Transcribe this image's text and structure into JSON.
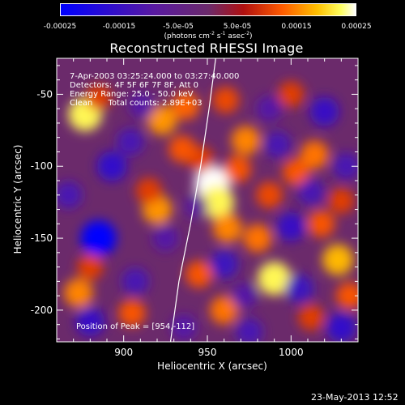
{
  "colorbar": {
    "ticks": [
      "-0.00025",
      "-0.00015",
      "-5.0e-05",
      "5.0e-05",
      "0.00015",
      "0.00025"
    ],
    "units_prefix": "(photons cm",
    "units_exp1": "-2",
    "units_mid1": " s",
    "units_exp2": "-1",
    "units_mid2": " asec",
    "units_exp3": "-2",
    "units_suffix": ")"
  },
  "chart_data": {
    "type": "heatmap",
    "title": "Reconstructed RHESSI Image",
    "xlabel": "Heliocentric X (arcsec)",
    "ylabel": "Heliocentric Y (arcsec)",
    "xlim": [
      860,
      1040
    ],
    "ylim": [
      -222,
      -25
    ],
    "xticks": [
      900,
      950,
      1000
    ],
    "yticks": [
      -50,
      -100,
      -150,
      -200
    ],
    "colorbar_range": [
      -0.00025,
      0.00025
    ],
    "colormap": "blue-purple-red-yellow-white",
    "peak": {
      "x": 954,
      "y": -112
    },
    "limb_line": [
      [
        928,
        -222
      ],
      [
        933,
        -180
      ],
      [
        940,
        -140
      ],
      [
        946,
        -100
      ],
      [
        951,
        -60
      ],
      [
        955,
        -25
      ]
    ],
    "blobs": [
      {
        "x": 953,
        "y": -112,
        "v": 0.00025
      },
      {
        "x": 956,
        "y": -125,
        "v": 0.00022
      },
      {
        "x": 946,
        "y": -95,
        "v": 0.0001
      },
      {
        "x": 962,
        "y": -143,
        "v": 0.00015
      },
      {
        "x": 980,
        "y": -150,
        "v": 0.00014
      },
      {
        "x": 990,
        "y": -178,
        "v": 0.00022
      },
      {
        "x": 935,
        "y": -88,
        "v": 0.00012
      },
      {
        "x": 923,
        "y": -68,
        "v": 0.00016
      },
      {
        "x": 937,
        "y": -58,
        "v": 0.00013
      },
      {
        "x": 877,
        "y": -64,
        "v": 0.00022
      },
      {
        "x": 885,
        "y": -52,
        "v": 0.0001
      },
      {
        "x": 920,
        "y": -130,
        "v": 0.00016
      },
      {
        "x": 915,
        "y": -117,
        "v": 0.0001
      },
      {
        "x": 973,
        "y": -82,
        "v": 0.00015
      },
      {
        "x": 968,
        "y": -102,
        "v": 0.00012
      },
      {
        "x": 1003,
        "y": -104,
        "v": 0.00012
      },
      {
        "x": 1014,
        "y": -92,
        "v": 0.00014
      },
      {
        "x": 1018,
        "y": -140,
        "v": 0.00012
      },
      {
        "x": 1030,
        "y": -124,
        "v": 0.0001
      },
      {
        "x": 1028,
        "y": -165,
        "v": 0.00018
      },
      {
        "x": 1035,
        "y": -190,
        "v": 0.00012
      },
      {
        "x": 1012,
        "y": -205,
        "v": 0.0001
      },
      {
        "x": 873,
        "y": -188,
        "v": 0.00015
      },
      {
        "x": 880,
        "y": -170,
        "v": 0.0001
      },
      {
        "x": 905,
        "y": -202,
        "v": 0.00012
      },
      {
        "x": 960,
        "y": -200,
        "v": 0.00014
      },
      {
        "x": 945,
        "y": -175,
        "v": 0.00012
      },
      {
        "x": 1000,
        "y": -50,
        "v": 0.0001
      },
      {
        "x": 961,
        "y": -54,
        "v": 0.00011
      },
      {
        "x": 987,
        "y": -120,
        "v": 0.00011
      },
      {
        "x": 867,
        "y": -120,
        "v": -0.00012
      },
      {
        "x": 885,
        "y": -150,
        "v": -0.00025
      },
      {
        "x": 893,
        "y": -100,
        "v": -0.00016
      },
      {
        "x": 907,
        "y": -180,
        "v": -0.00012
      },
      {
        "x": 925,
        "y": -150,
        "v": -0.0001
      },
      {
        "x": 904,
        "y": -83,
        "v": -0.00012
      },
      {
        "x": 911,
        "y": -58,
        "v": -0.0001
      },
      {
        "x": 880,
        "y": -208,
        "v": -0.00015
      },
      {
        "x": 1020,
        "y": -62,
        "v": -0.00015
      },
      {
        "x": 992,
        "y": -85,
        "v": -0.00012
      },
      {
        "x": 1000,
        "y": -142,
        "v": -0.00015
      },
      {
        "x": 1012,
        "y": -118,
        "v": -0.00012
      },
      {
        "x": 1005,
        "y": -185,
        "v": -0.00014
      },
      {
        "x": 1033,
        "y": -100,
        "v": -0.00012
      },
      {
        "x": 1030,
        "y": -212,
        "v": -0.00016
      },
      {
        "x": 960,
        "y": -168,
        "v": -0.00014
      },
      {
        "x": 972,
        "y": -190,
        "v": -0.0001
      },
      {
        "x": 936,
        "y": -212,
        "v": -0.0001
      },
      {
        "x": 975,
        "y": -215,
        "v": -0.00012
      },
      {
        "x": 987,
        "y": -60,
        "v": -0.0001
      },
      {
        "x": 943,
        "y": -128,
        "v": -8e-05
      }
    ]
  },
  "annotations": {
    "time_range": "7-Apr-2003 03:25:24.000 to 03:27:40.000",
    "detectors": "Detectors: 4F 5F 6F 7F 8F, Att 0",
    "energy": "Energy Range: 25.0 - 50.0 keV",
    "clean": "Clean      Total counts: 2.89E+03",
    "peak": "Position of Peak = [954,-112]"
  },
  "footer": {
    "timestamp": "23-May-2013 12:52"
  }
}
